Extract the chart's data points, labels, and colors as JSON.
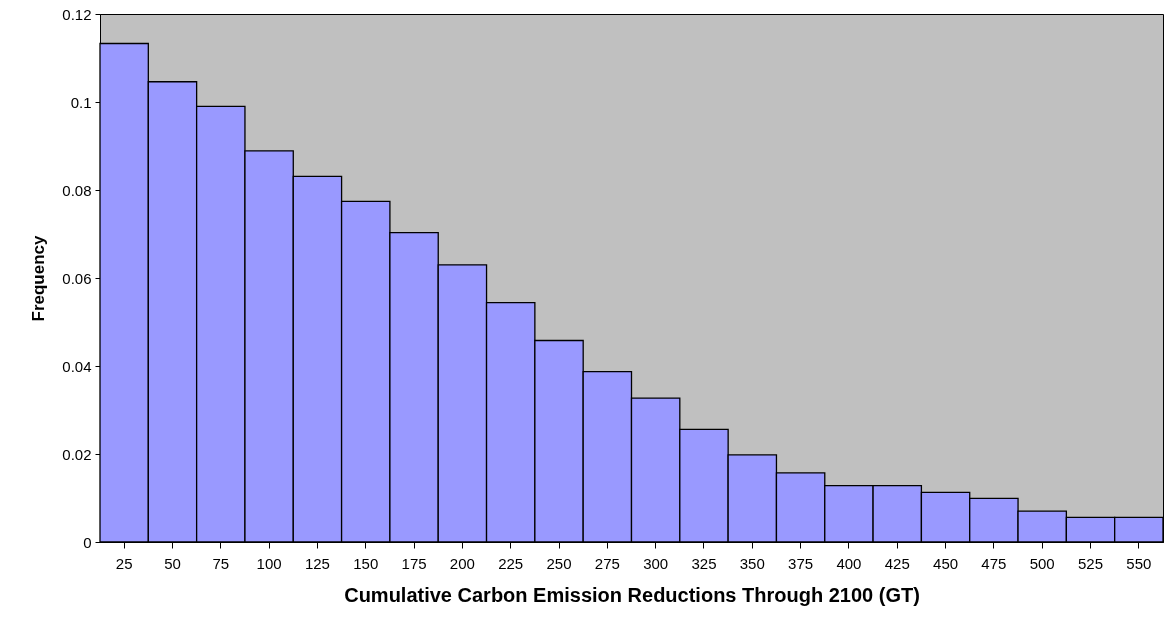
{
  "chart_data": {
    "type": "bar",
    "xlabel": "Cumulative Carbon Emission Reductions Through 2100 (GT)",
    "ylabel": "Frequency",
    "categories": [
      "25",
      "50",
      "75",
      "100",
      "125",
      "150",
      "175",
      "200",
      "225",
      "250",
      "275",
      "300",
      "325",
      "350",
      "375",
      "400",
      "425",
      "450",
      "475",
      "500",
      "525",
      "550"
    ],
    "values": [
      0.1133,
      0.1046,
      0.099,
      0.0889,
      0.0831,
      0.0774,
      0.0703,
      0.063,
      0.0544,
      0.0458,
      0.0387,
      0.0327,
      0.0256,
      0.0198,
      0.0157,
      0.0128,
      0.0128,
      0.0113,
      0.0099,
      0.007,
      0.0056,
      0.0056
    ],
    "color": "#9999ff",
    "ylim": [
      0,
      0.12
    ],
    "yticks": [
      0,
      0.02,
      0.04,
      0.06,
      0.08,
      0.1,
      0.12
    ],
    "grid": false
  }
}
